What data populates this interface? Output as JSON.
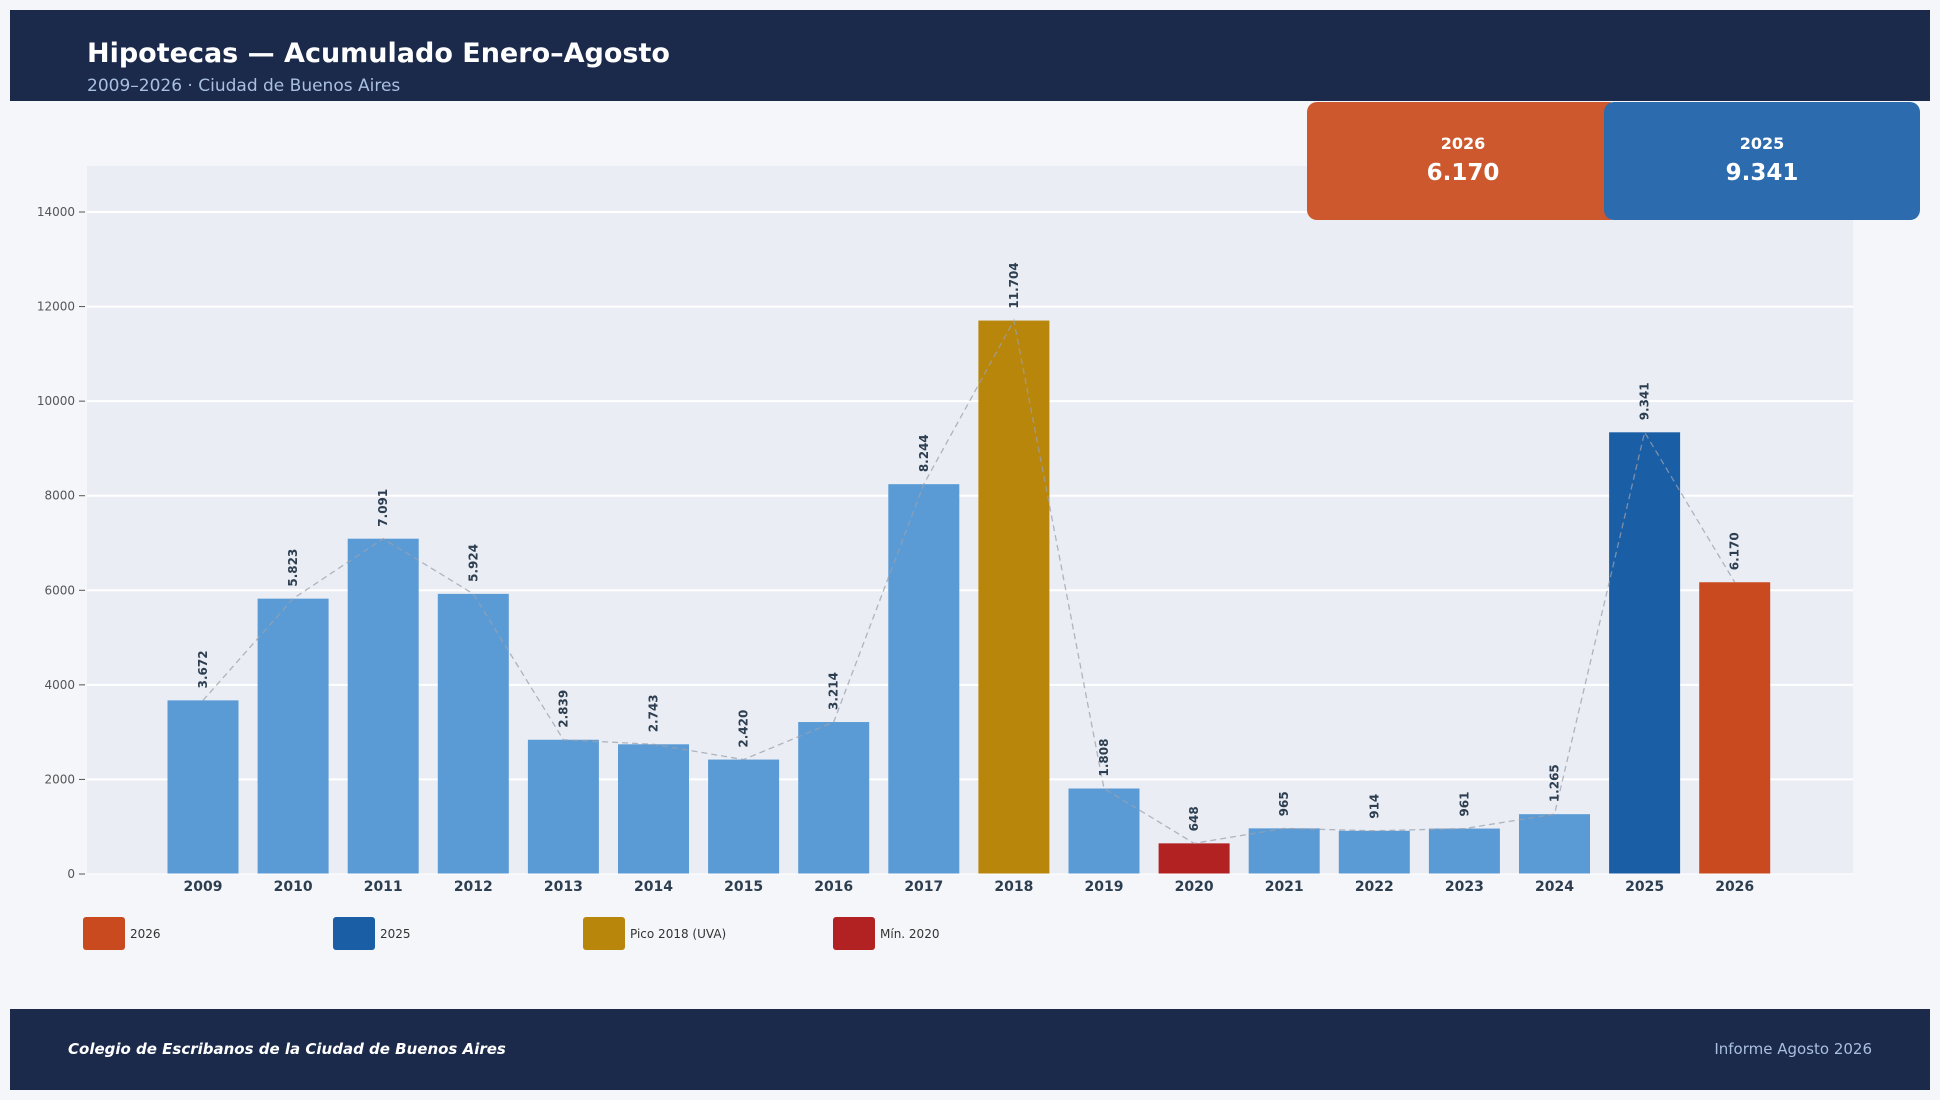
{
  "header": {
    "title": "Hipotecas — Acumulado Enero–Agosto",
    "subtitle": "2009–2026 · Ciudad de Buenos Aires"
  },
  "cards": [
    {
      "label": "2026",
      "value": "6.170",
      "color": "#cd582e"
    },
    {
      "label": "2025",
      "value": "9.341",
      "color": "#2c6bad"
    }
  ],
  "chart_data": {
    "type": "bar",
    "categories": [
      "2009",
      "2010",
      "2011",
      "2012",
      "2013",
      "2014",
      "2015",
      "2016",
      "2017",
      "2018",
      "2019",
      "2020",
      "2021",
      "2022",
      "2023",
      "2024",
      "2025",
      "2026"
    ],
    "values": [
      3672,
      5823,
      7091,
      5924,
      2839,
      2743,
      2420,
      3214,
      8244,
      11704,
      1808,
      648,
      965,
      914,
      961,
      1265,
      9341,
      6170
    ],
    "value_labels": [
      "3.672",
      "5.823",
      "7.091",
      "5.924",
      "2.839",
      "2.743",
      "2.420",
      "3.214",
      "8.244",
      "11.704",
      "1.808",
      "648",
      "965",
      "914",
      "961",
      "1.265",
      "9.341",
      "6.170"
    ],
    "bar_colors": [
      "#5b9bd5",
      "#5b9bd5",
      "#5b9bd5",
      "#5b9bd5",
      "#5b9bd5",
      "#5b9bd5",
      "#5b9bd5",
      "#5b9bd5",
      "#5b9bd5",
      "#b8860b",
      "#5b9bd5",
      "#b22222",
      "#5b9bd5",
      "#5b9bd5",
      "#5b9bd5",
      "#5b9bd5",
      "#1a5ea6",
      "#c94a1e"
    ],
    "trend_line": true,
    "yticks": [
      0,
      2000,
      4000,
      6000,
      8000,
      10000,
      12000,
      14000
    ],
    "ylim": [
      0,
      15000
    ],
    "grid": true,
    "xlabel": "",
    "ylabel": "",
    "legend_position": "bottom-left",
    "legend": [
      {
        "label": "2026",
        "color": "#c94a1e"
      },
      {
        "label": "2025",
        "color": "#1a5ea6"
      },
      {
        "label": "Pico 2018 (UVA)",
        "color": "#b8860b"
      },
      {
        "label": "Mín. 2020",
        "color": "#b22222"
      }
    ]
  },
  "footer": {
    "left": "Colegio de Escribanos de la Ciudad de Buenos Aires",
    "right": "Informe Agosto 2026"
  }
}
